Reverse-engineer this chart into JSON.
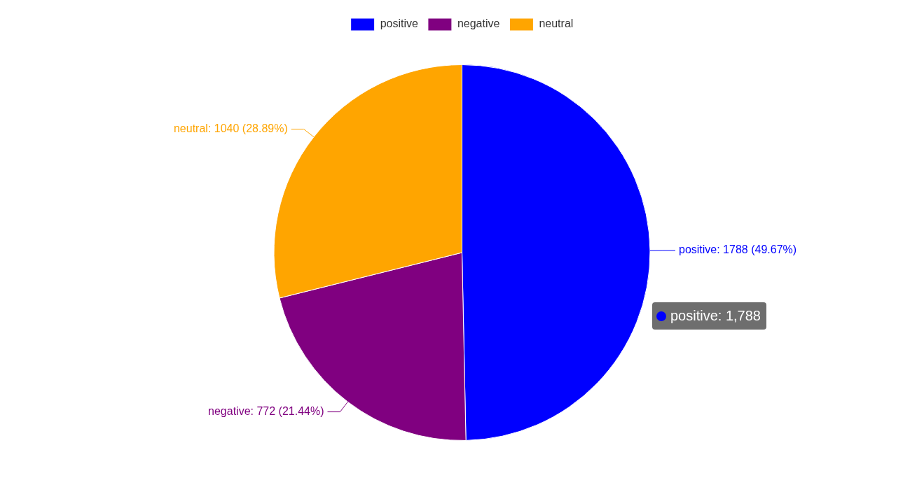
{
  "chart_data": {
    "type": "pie",
    "categories": [
      "positive",
      "negative",
      "neutral"
    ],
    "values": [
      1788,
      772,
      1040
    ],
    "colors": [
      "#0000ff",
      "#800080",
      "#ffa500"
    ],
    "value_labels": [
      "positive: 1788 (49.67%)",
      "negative: 772 (21.44%)",
      "neutral: 1040 (28.89%)"
    ],
    "annotations": [
      "positive: 1,788"
    ],
    "legend": "top"
  }
}
